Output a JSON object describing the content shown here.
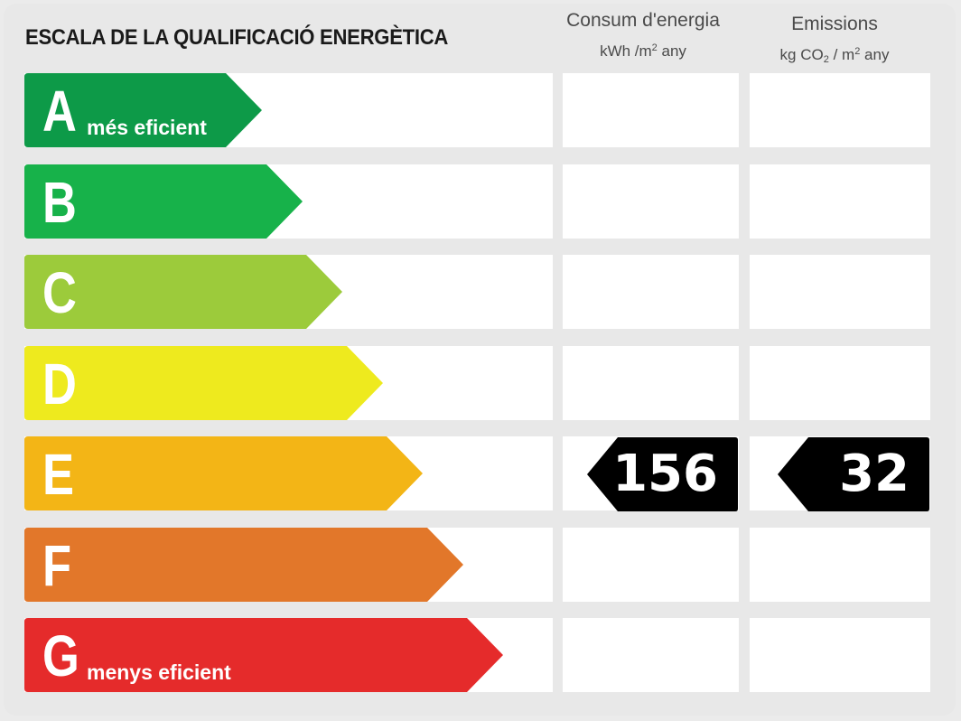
{
  "title": "ESCALA DE LA QUALIFICACIÓ ENERGÈTICA",
  "columns": {
    "consumption": {
      "label": "Consum d'energia",
      "unit_prefix": "kWh /m",
      "unit_sup": "2",
      "unit_suffix": " any"
    },
    "emissions": {
      "label": "Emissions",
      "unit_prefix": "kg CO",
      "unit_sub": "2",
      "unit_mid": " / m",
      "unit_sup": "2",
      "unit_suffix": " any"
    }
  },
  "classes": [
    {
      "letter": "A",
      "label": "més eficient",
      "color": "#0d9a48"
    },
    {
      "letter": "B",
      "label": "",
      "color": "#17b24a"
    },
    {
      "letter": "C",
      "label": "",
      "color": "#9ccb3b"
    },
    {
      "letter": "D",
      "label": "",
      "color": "#eeea1e"
    },
    {
      "letter": "E",
      "label": "",
      "color": "#f3b516"
    },
    {
      "letter": "F",
      "label": "",
      "color": "#e2772a"
    },
    {
      "letter": "G",
      "label": "menys eficient",
      "color": "#e52b2b"
    }
  ],
  "rating": {
    "class": "E",
    "consumption_value": "156",
    "emissions_value": "32",
    "marker_color": "#000000"
  }
}
